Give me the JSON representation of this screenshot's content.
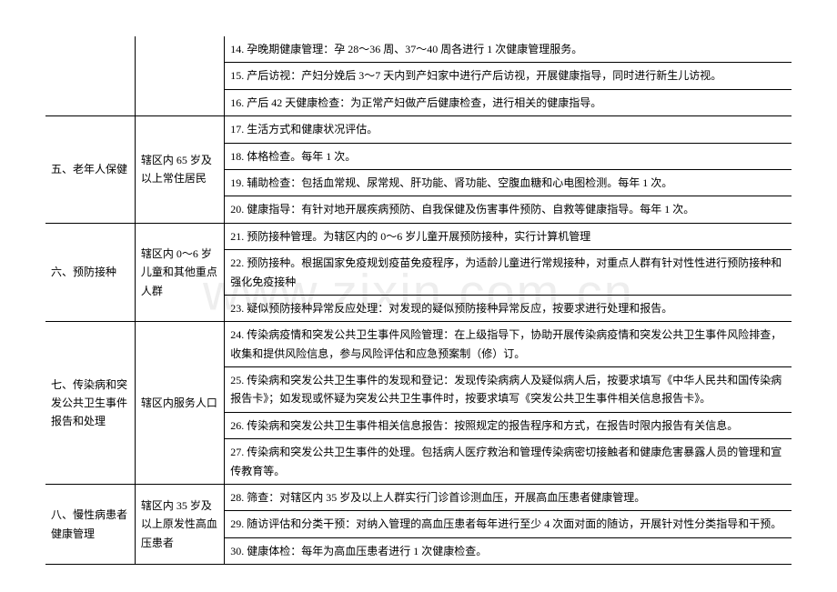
{
  "sections": {
    "top_empty_col1": "",
    "top_empty_col2": "",
    "row14": "14. 孕晚期健康管理：孕 28～36 周、37～40 周各进行 1 次健康管理服务。",
    "row15": "15. 产后访视：产妇分娩后 3～7 天内到产妇家中进行产后访视，开展健康指导，同时进行新生儿访视。",
    "row16": "16. 产后 42 天健康检查：为正常产妇做产后健康检查，进行相关的健康指导。",
    "sec5_title": "五、老年人保健",
    "sec5_target": "辖区内 65 岁及以上常住居民",
    "row17": "17. 生活方式和健康状况评估。",
    "row18": "18. 体格检查。每年 1 次。",
    "row19": "19. 辅助检查：包括血常规、尿常规、肝功能、肾功能、空腹血糖和心电图检测。每年 1 次。",
    "row20": "20. 健康指导：有针对地开展疾病预防、自我保健及伤害事件预防、自救等健康指导。每年 1 次。",
    "sec6_title": "六、预防接种",
    "sec6_target": "辖区内 0～6 岁儿童和其他重点人群",
    "row21": "21. 预防接种管理。为辖区内的 0～6 岁儿童开展预防接种，实行计算机管理",
    "row22": "22. 预防接种。根据国家免疫规划疫苗免疫程序，为适龄儿童进行常规接种，对重点人群有针对性性进行预防接种和强化免疫接种",
    "row23": "23. 疑似预防接种异常反应处理：对发现的疑似预防接种异常反应，按要求进行处理和报告。",
    "sec7_title": "七、传染病和突发公共卫生事件报告和处理",
    "sec7_target": "辖区内服务人口",
    "row24": "24. 传染病疫情和突发公共卫生事件风险管理：在上级指导下，协助开展传染病疫情和突发公共卫生事件风险排查，收集和提供风险信息，参与风险评估和应急预案制（修）订。",
    "row25": "25. 传染病和突发公共卫生事件的发现和登记：发现传染病病人及疑似病人后，按要求填写《中华人民共和国传染病报告卡》；如发现或怀疑为突发公共卫生事件时，按要求填写《突发公共卫生事件相关信息报告卡》。",
    "row26": "26. 传染病和突发公共卫生事件相关信息报告：按照规定的报告程序和方式，在报告时限内报告有关信息。",
    "row27": "27. 传染病和突发公共卫生事件的处理。包括病人医疗救治和管理传染病密切接触者和健康危害暴露人员的管理和宣传教育等。",
    "sec8_title": "八、慢性病患者健康管理",
    "sec8_target": "辖区内 35 岁及以上原发性高血压患者",
    "row28": "28. 筛查：对辖区内 35 岁及以上人群实行门诊首诊测血压，开展高血压患者健康管理。",
    "row29": "29. 随访评估和分类干预：对纳入管理的高血压患者每年进行至少 4 次面对面的随访，开展针对性分类指导和干预。",
    "row30": "30. 健康体检：每年为高血压患者进行 1 次健康检查。"
  },
  "style": {
    "font_family": "SimSun",
    "font_size_pt": 9,
    "border_color": "#000000",
    "background_color": "#ffffff",
    "text_color": "#000000",
    "watermark_color": "#eeeeee",
    "watermark_text": "www.zixin.com.cn",
    "col_widths_pct": [
      12,
      12,
      76
    ]
  }
}
